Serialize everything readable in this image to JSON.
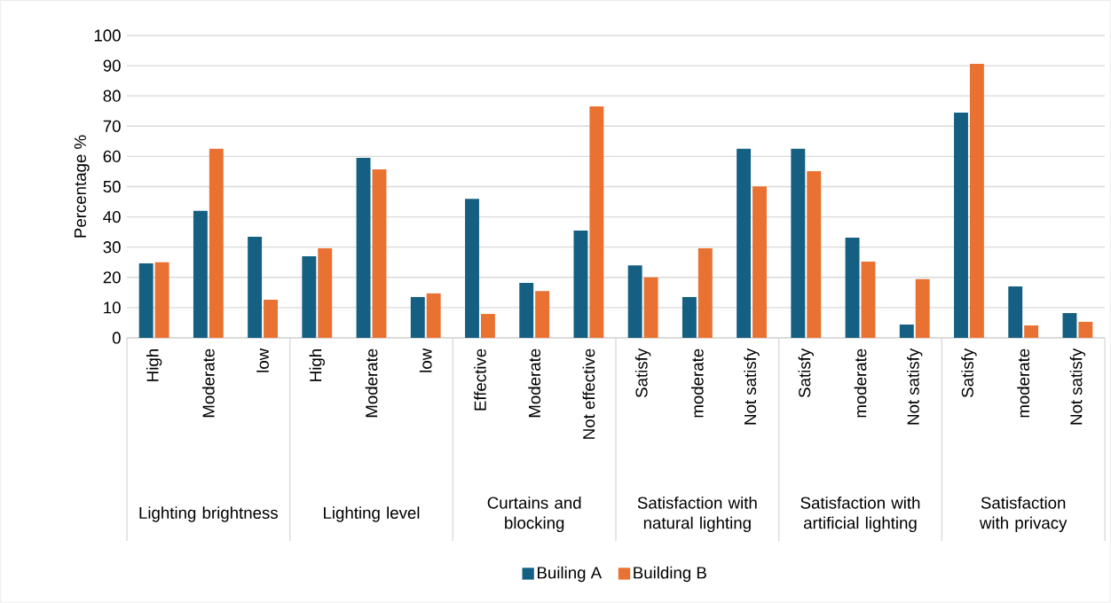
{
  "chart_data": {
    "type": "bar",
    "ylabel": "Percentage %",
    "categories": [
      "High",
      "Moderate",
      "low",
      "High",
      "Moderate",
      "low",
      "Effective",
      "Moderate",
      "Not effective",
      "Satisfy",
      "moderate",
      "Not satisfy",
      "Satisfy",
      "moderate",
      "Not satisfy",
      "Satisfy",
      "moderate",
      "Not satisfy"
    ],
    "annotations": [
      "Lighting brightness",
      "Lighting level",
      "Curtains and blocking",
      "Satisfaction with natural lighting",
      "Satisfaction with artificial lighting",
      "Satisfaction with privacy"
    ],
    "series": [
      {
        "name": "Builing A",
        "color": "#156082",
        "values": [
          24.6,
          42,
          33.4,
          27,
          59.5,
          13.5,
          46,
          18.2,
          35.5,
          24,
          13.5,
          62.5,
          62.5,
          33.1,
          4.4,
          74.5,
          17,
          8.2
        ]
      },
      {
        "name": "Building B",
        "color": "#e97132",
        "values": [
          25,
          62.5,
          12.6,
          29.6,
          55.7,
          14.7,
          7.9,
          15.5,
          76.5,
          20,
          29.6,
          50.1,
          55.1,
          25.2,
          19.4,
          90.6,
          4.1,
          5.3
        ]
      }
    ],
    "ylim": [
      0,
      100
    ],
    "yticks": [
      0,
      10,
      20,
      30,
      40,
      50,
      60,
      70,
      80,
      90,
      100
    ],
    "grid": "y",
    "legend": "bottom"
  }
}
